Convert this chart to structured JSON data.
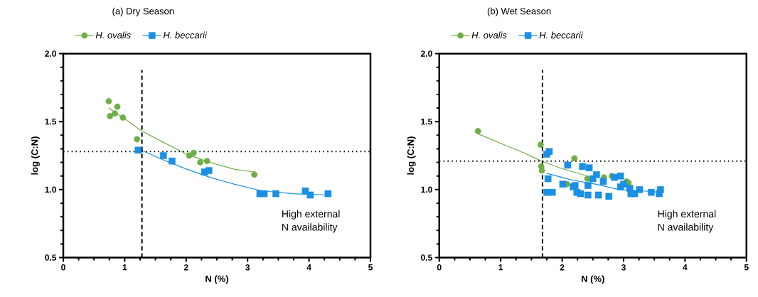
{
  "chart_data": [
    {
      "type": "scatter",
      "title": "(a) Dry Season",
      "xlabel": "N (%)",
      "ylabel": "log (C:N)",
      "xlim": [
        0,
        5
      ],
      "ylim": [
        0.5,
        2.0
      ],
      "xticks": [
        0,
        1,
        2,
        3,
        4,
        5
      ],
      "yticks": [
        {
          "value": 0.5,
          "label": "0.5"
        },
        {
          "value": 1.0,
          "label": "1.0"
        },
        {
          "value": 1.5,
          "label": "1.5"
        },
        {
          "value": 2.0,
          "label": "2.0"
        }
      ],
      "legend": "top",
      "grid": false,
      "series": [
        {
          "name": "*H. ovalis*",
          "marker": "circle",
          "color": "#70ad47",
          "x": [
            0.74,
            0.88,
            0.76,
            0.84,
            0.97,
            1.2,
            2.05,
            2.12,
            2.23,
            2.34,
            3.11
          ],
          "values": [
            1.65,
            1.61,
            1.54,
            1.56,
            1.53,
            1.37,
            1.25,
            1.27,
            1.2,
            1.21,
            1.11
          ]
        },
        {
          "name": "*H. beccarii*",
          "marker": "square",
          "color": "#1a8fe3",
          "x": [
            1.22,
            1.63,
            1.77,
            2.3,
            2.37,
            3.2,
            3.27,
            3.46,
            3.94,
            4.02,
            4.31
          ],
          "values": [
            1.29,
            1.25,
            1.21,
            1.13,
            1.14,
            0.97,
            0.97,
            0.97,
            0.99,
            0.96,
            0.97
          ]
        },
        {
          "type": "line",
          "marker": "none",
          "line_style": "solid",
          "color": "#70ad47",
          "x": [
            0.74,
            0.97,
            1.28,
            1.62,
            2.01,
            2.39,
            2.78,
            3.11
          ],
          "values": [
            1.6,
            1.53,
            1.43,
            1.35,
            1.26,
            1.2,
            1.15,
            1.13
          ]
        },
        {
          "type": "line",
          "marker": "none",
          "line_style": "solid",
          "color": "#1a8fe3",
          "x": [
            1.22,
            1.62,
            2.01,
            2.39,
            2.78,
            3.24,
            3.75,
            4.32
          ],
          "values": [
            1.3,
            1.22,
            1.15,
            1.09,
            1.04,
            0.99,
            0.97,
            0.96
          ]
        }
      ],
      "ref_lines": [
        {
          "axis": "x",
          "value": 1.28,
          "line_style": "dashed"
        },
        {
          "axis": "y",
          "value": 1.28,
          "line_style": "dotted"
        }
      ],
      "annotations": [
        "High external",
        "N availability"
      ]
    },
    {
      "type": "scatter",
      "title": "(b) Wet Season",
      "xlabel": "N (%)",
      "ylabel": "log (C:N)",
      "xlim": [
        0,
        5
      ],
      "ylim": [
        0.5,
        2.0
      ],
      "xticks": [
        0,
        1,
        2,
        3,
        4,
        5
      ],
      "yticks": [
        {
          "value": 0.5,
          "label": "0.5"
        },
        {
          "value": 1.0,
          "label": "1.0"
        },
        {
          "value": 1.5,
          "label": "1.5"
        },
        {
          "value": 2.0,
          "label": "2.0"
        }
      ],
      "legend": "top",
      "grid": false,
      "series": [
        {
          "name": "*H. ovalis*",
          "marker": "circle",
          "color": "#70ad47",
          "x": [
            0.63,
            1.65,
            1.66,
            1.67,
            2.2,
            2.08,
            2.41,
            2.68,
            2.81,
            3.05,
            3.08
          ],
          "values": [
            1.43,
            1.33,
            1.17,
            1.14,
            1.23,
            1.04,
            1.08,
            1.09,
            1.1,
            1.06,
            1.05
          ]
        },
        {
          "name": "*H. beccarii*",
          "marker": "square",
          "color": "#1a8fe3",
          "x": [
            1.75,
            1.79,
            1.77,
            1.75,
            1.84,
            2.01,
            2.09,
            2.18,
            2.21,
            2.24,
            2.3,
            2.33,
            2.44,
            2.42,
            2.42,
            2.5,
            2.56,
            2.59,
            2.67,
            2.76,
            2.85,
            2.95,
            2.95,
            3.0,
            3.1,
            3.12,
            3.18,
            3.26,
            3.45,
            3.58,
            3.6
          ],
          "values": [
            1.26,
            1.28,
            1.08,
            0.98,
            0.98,
            1.04,
            1.18,
            1.02,
            1.03,
            0.98,
            0.97,
            1.17,
            1.16,
            1.03,
            0.96,
            1.08,
            1.11,
            0.96,
            1.06,
            0.95,
            1.09,
            1.1,
            1.02,
            1.04,
            1.01,
            0.97,
            0.97,
            1.0,
            0.98,
            0.97,
            1.0
          ]
        },
        {
          "type": "line",
          "marker": "none",
          "line_style": "solid",
          "color": "#70ad47",
          "x": [
            0.63,
            1.0,
            1.38,
            1.66,
            1.96,
            2.41
          ],
          "values": [
            1.41,
            1.34,
            1.27,
            1.21,
            1.16,
            1.1
          ]
        },
        {
          "type": "line",
          "marker": "none",
          "line_style": "solid",
          "color": "#1a8fe3",
          "x": [
            1.75,
            2.16,
            2.54,
            2.93,
            3.32,
            3.59
          ],
          "values": [
            1.12,
            1.07,
            1.04,
            1.0,
            0.99,
            0.98
          ]
        }
      ],
      "ref_lines": [
        {
          "axis": "x",
          "value": 1.68,
          "line_style": "dashed"
        },
        {
          "axis": "y",
          "value": 1.21,
          "line_style": "dotted"
        }
      ],
      "annotations": [
        "High external",
        "N availability"
      ]
    }
  ]
}
